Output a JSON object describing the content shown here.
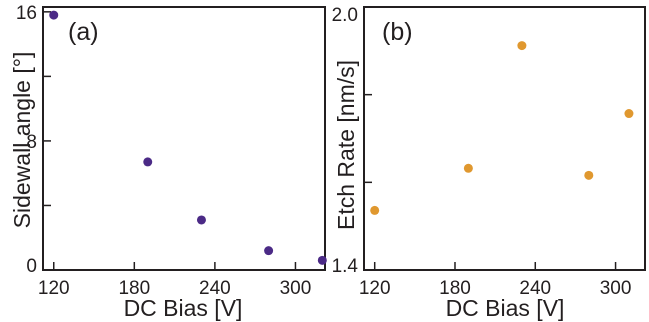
{
  "chart_data": [
    {
      "type": "scatter",
      "panel_label": "(a)",
      "xlabel": "DC Bias [V]",
      "ylabel": "Sidewall angle [°]",
      "xlim": [
        112,
        322
      ],
      "ylim": [
        0,
        16.3
      ],
      "xticks": [
        120,
        180,
        240,
        300
      ],
      "yticks_labeled": [
        0,
        8,
        16
      ],
      "yticks_minor": [
        4,
        12
      ],
      "color": "#4b2a86",
      "series": [
        {
          "x": [
            120,
            190,
            230,
            280,
            320
          ],
          "y": [
            15.8,
            6.7,
            3.1,
            1.2,
            0.6
          ]
        }
      ],
      "grid": false
    },
    {
      "type": "scatter",
      "panel_label": "(b)",
      "xlabel": "DC Bias [V]",
      "ylabel": "Etch Rate [nm/s]",
      "xlim": [
        112,
        322
      ],
      "ylim": [
        1.4,
        2.0
      ],
      "xticks": [
        120,
        180,
        240,
        300
      ],
      "yticks_labeled": [
        1.4,
        2.0
      ],
      "yticks_minor": [
        1.6,
        1.8
      ],
      "color": "#e0982f",
      "series": [
        {
          "x": [
            120,
            190,
            230,
            280,
            310
          ],
          "y": [
            1.536,
            1.632,
            1.912,
            1.616,
            1.757
          ]
        }
      ],
      "grid": false
    }
  ]
}
